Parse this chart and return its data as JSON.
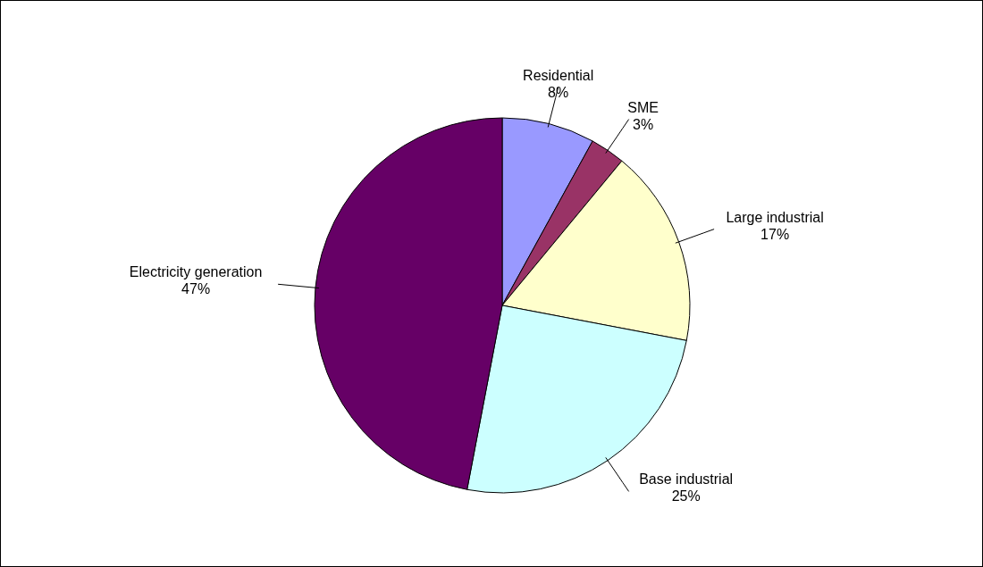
{
  "chart_data": {
    "type": "pie",
    "categories": [
      "Residential",
      "SME",
      "Large industrial",
      "Base industrial",
      "Electricity generation"
    ],
    "values": [
      8,
      3,
      17,
      25,
      47
    ],
    "colors": [
      "#9999ff",
      "#993366",
      "#ffffcc",
      "#ccffff",
      "#660066"
    ],
    "value_labels": [
      "8%",
      "3%",
      "17%",
      "25%",
      "47%"
    ]
  }
}
